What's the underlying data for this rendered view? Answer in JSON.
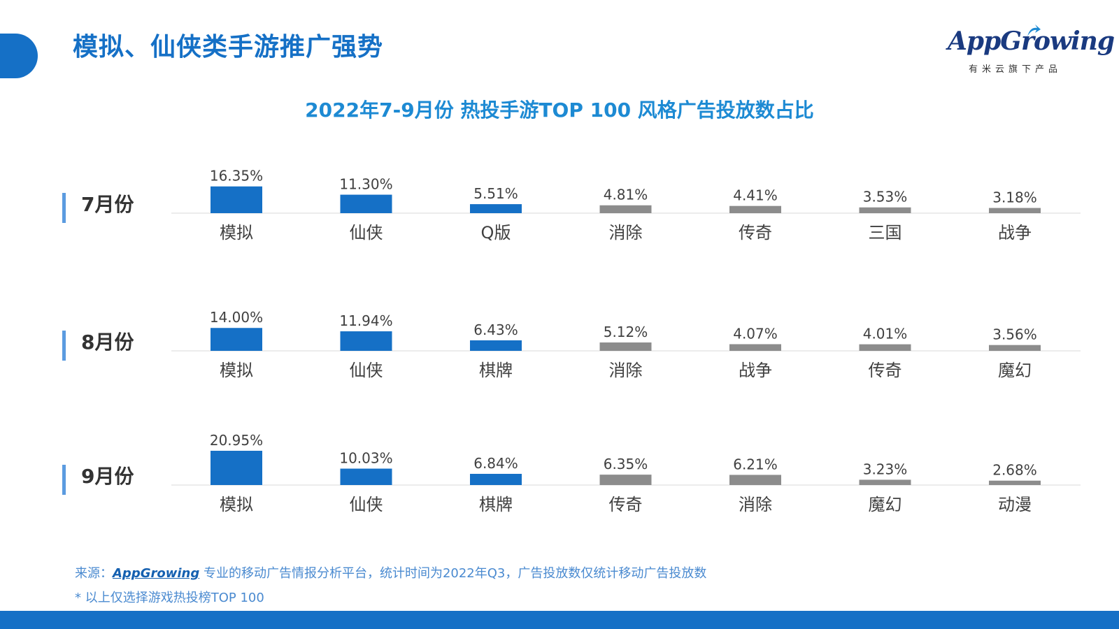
{
  "header": {
    "title": "模拟、仙侠类手游推广强势",
    "logo_text": "AppGrowing",
    "logo_sub": "有米云旗下产品"
  },
  "chart_data": {
    "type": "bar",
    "title": "2022年7-9月份 热投手游TOP 100 风格广告投放数占比",
    "unit": "%",
    "xlabel": "",
    "ylabel": "",
    "colors": {
      "highlight": "#1570c6",
      "other": "#8c8c8c"
    },
    "highlight_count": 3,
    "groups": [
      {
        "month": "7月份",
        "categories": [
          "模拟",
          "仙侠",
          "Q版",
          "消除",
          "传奇",
          "三国",
          "战争"
        ],
        "values": [
          16.35,
          11.3,
          5.51,
          4.81,
          4.41,
          3.53,
          3.18
        ],
        "labels": [
          "16.35%",
          "11.30%",
          "5.51%",
          "4.81%",
          "4.41%",
          "3.53%",
          "3.18%"
        ]
      },
      {
        "month": "8月份",
        "categories": [
          "模拟",
          "仙侠",
          "棋牌",
          "消除",
          "战争",
          "传奇",
          "魔幻"
        ],
        "values": [
          14.0,
          11.94,
          6.43,
          5.12,
          4.07,
          4.01,
          3.56
        ],
        "labels": [
          "14.00%",
          "11.94%",
          "6.43%",
          "5.12%",
          "4.07%",
          "4.01%",
          "3.56%"
        ]
      },
      {
        "month": "9月份",
        "categories": [
          "模拟",
          "仙侠",
          "棋牌",
          "传奇",
          "消除",
          "魔幻",
          "动漫"
        ],
        "values": [
          20.95,
          10.03,
          6.84,
          6.35,
          6.21,
          3.23,
          2.68
        ],
        "labels": [
          "20.95%",
          "10.03%",
          "6.84%",
          "6.35%",
          "6.21%",
          "3.23%",
          "2.68%"
        ]
      }
    ]
  },
  "footer": {
    "source_prefix": "来源：",
    "source_brand": "AppGrowing",
    "source_text": "专业的移动广告情报分析平台，统计时间为2022年Q3，广告投放数仅统计移动广告投放数",
    "note": "* 以上仅选择游戏热投榜TOP 100"
  }
}
